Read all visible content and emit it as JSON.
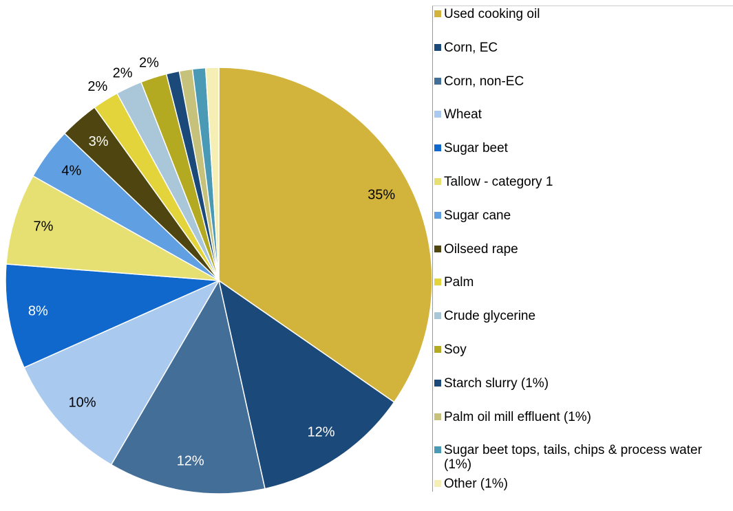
{
  "chart_data": {
    "type": "pie",
    "categories": [
      "Used cooking oil",
      "Corn, EC",
      "Corn, non-EC",
      "Wheat",
      "Sugar beet",
      "Tallow - category 1",
      "Sugar cane",
      "Oilseed rape",
      "Palm",
      "Crude glycerine",
      "Soy",
      "Starch slurry  (1%)",
      "Palm oil mill effluent  (1%)",
      "Sugar beet tops, tails, chips & process water (1%)",
      "Other  (1%)"
    ],
    "values": [
      35,
      12,
      12,
      10,
      8,
      7,
      4,
      3,
      2,
      2,
      2,
      1,
      1,
      1,
      1
    ],
    "value_labels": [
      "35%",
      "12%",
      "12%",
      "10%",
      "8%",
      "7%",
      "4%",
      "3%",
      "2%",
      "2%",
      "2%",
      null,
      null,
      null,
      null
    ],
    "colors": [
      "#d2b43c",
      "#1b4a7a",
      "#436e98",
      "#a9c9ee",
      "#1068cc",
      "#e6e072",
      "#60a0e2",
      "#4f4510",
      "#e2d43a",
      "#a9c7d8",
      "#b4aa22",
      "#1b4a7a",
      "#c6c27c",
      "#4a9ab6",
      "#f5efb6"
    ],
    "legend": "right"
  }
}
